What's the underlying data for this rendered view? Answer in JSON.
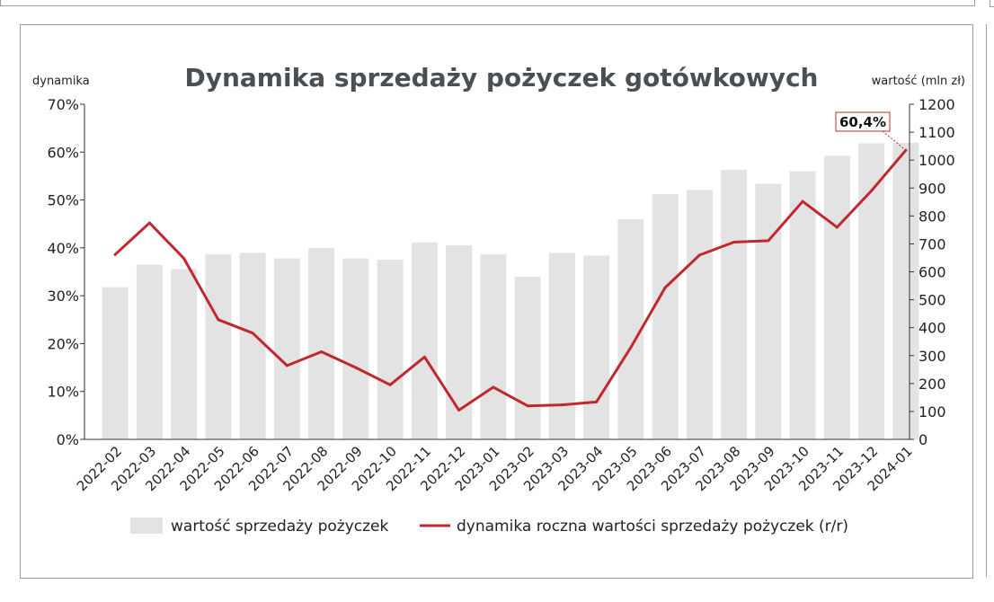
{
  "chart_data": {
    "type": "bar+line",
    "title": "Dynamika sprzedaży pożyczek gotówkowych",
    "ylabel_left": "dynamika",
    "ylabel_right": "wartość (mln zł)",
    "categories": [
      "2022-02",
      "2022-03",
      "2022-04",
      "2022-05",
      "2022-06",
      "2022-07",
      "2022-08",
      "2022-09",
      "2022-10",
      "2022-11",
      "2022-12",
      "2023-01",
      "2023-02",
      "2023-03",
      "2023-04",
      "2023-05",
      "2023-06",
      "2023-07",
      "2023-08",
      "2023-09",
      "2023-10",
      "2023-11",
      "2023-12",
      "2024-01"
    ],
    "left_ticks": [
      "0%",
      "10%",
      "20%",
      "30%",
      "40%",
      "50%",
      "60%",
      "70%"
    ],
    "right_ticks": [
      "0",
      "100",
      "200",
      "300",
      "400",
      "500",
      "600",
      "700",
      "800",
      "900",
      "1000",
      "1100",
      "1200"
    ],
    "ylim_left": [
      0,
      70
    ],
    "ylim_right": [
      0,
      1200
    ],
    "series": [
      {
        "name": "wartość sprzedaży pożyczek",
        "kind": "bar",
        "axis": "right",
        "color": "#e3e3e3",
        "values": [
          545,
          625,
          610,
          663,
          668,
          648,
          685,
          648,
          643,
          705,
          695,
          663,
          583,
          668,
          658,
          788,
          878,
          893,
          965,
          915,
          960,
          1015,
          1060,
          1062
        ]
      },
      {
        "name": "dynamika roczna wartości sprzedaży pożyczek (r/r)",
        "kind": "line",
        "axis": "left",
        "color": "#c0282d",
        "values": [
          38.6,
          45.2,
          37.8,
          25.0,
          22.2,
          15.4,
          18.3,
          15.0,
          11.4,
          17.2,
          6.1,
          10.9,
          7.0,
          7.2,
          7.8,
          19.2,
          31.7,
          38.5,
          41.2,
          41.5,
          49.7,
          44.3,
          51.9,
          60.4
        ]
      }
    ],
    "annotation": {
      "label": "60,4%",
      "category": "2024-01"
    },
    "grid": false,
    "legend_position": "bottom"
  }
}
